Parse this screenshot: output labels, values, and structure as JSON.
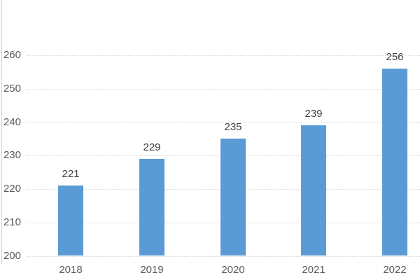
{
  "chart_data": {
    "type": "bar",
    "categories": [
      "2018",
      "2019",
      "2020",
      "2021",
      "2022"
    ],
    "values": [
      221,
      229,
      235,
      239,
      256
    ],
    "data_labels": [
      "221",
      "229",
      "235",
      "239",
      "256"
    ],
    "title": "",
    "xlabel": "",
    "ylabel": "",
    "ylim": [
      200,
      260
    ],
    "yticks": [
      200,
      210,
      220,
      230,
      240,
      250,
      260
    ],
    "ytick_labels": [
      "200",
      "210",
      "220",
      "230",
      "240",
      "250",
      "260"
    ],
    "grid": "horizontal-dotted",
    "legend": "none",
    "colors": {
      "bar": "#5b9bd5",
      "gridline": "#d9d9d9",
      "axis_line": "#d2d2d2",
      "tick_label": "#595959",
      "data_label": "#404040",
      "background": "#ffffff"
    }
  }
}
